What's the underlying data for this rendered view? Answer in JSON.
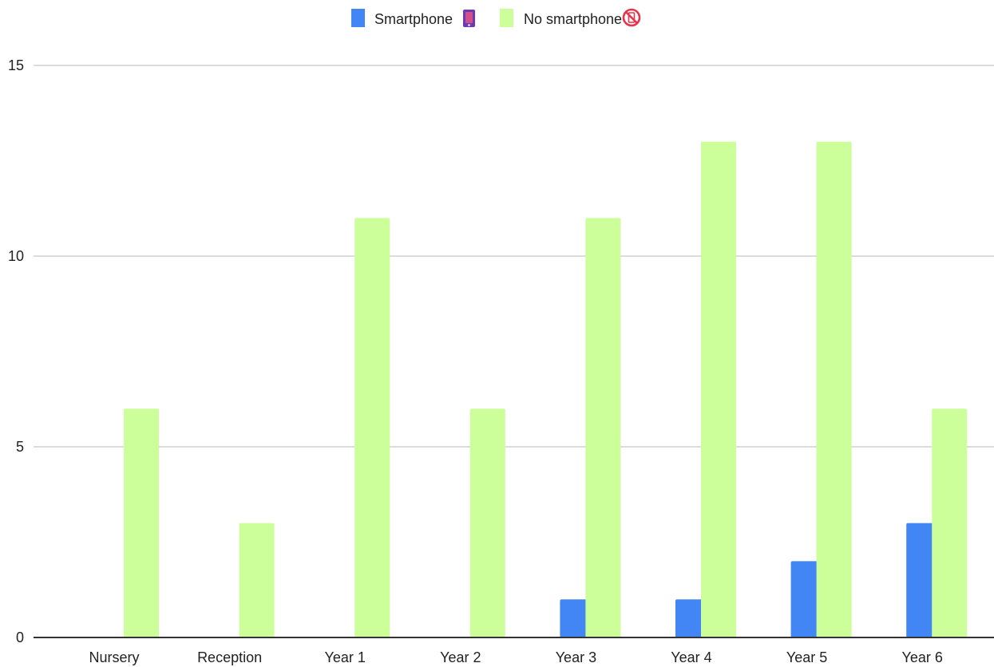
{
  "chart_data": {
    "type": "bar",
    "title": "",
    "xlabel": "",
    "ylabel": "",
    "categories": [
      "Nursery",
      "Reception",
      "Year 1",
      "Year 2",
      "Year 3",
      "Year 4",
      "Year 5",
      "Year 6"
    ],
    "series": [
      {
        "name": "Smartphone",
        "icon": "mobile-phone-icon",
        "color": "#4285f4",
        "values": [
          0,
          0,
          0,
          0,
          1,
          1,
          2,
          3
        ]
      },
      {
        "name": "No smartphone",
        "icon": "no-phone-icon",
        "color": "#ccff99",
        "values": [
          6,
          3,
          11,
          6,
          11,
          13,
          13,
          6
        ]
      }
    ],
    "ylim": [
      0,
      15
    ],
    "yticks": [
      "0",
      "5",
      "10",
      "15"
    ],
    "grid": true,
    "legend_position": "top-center"
  }
}
